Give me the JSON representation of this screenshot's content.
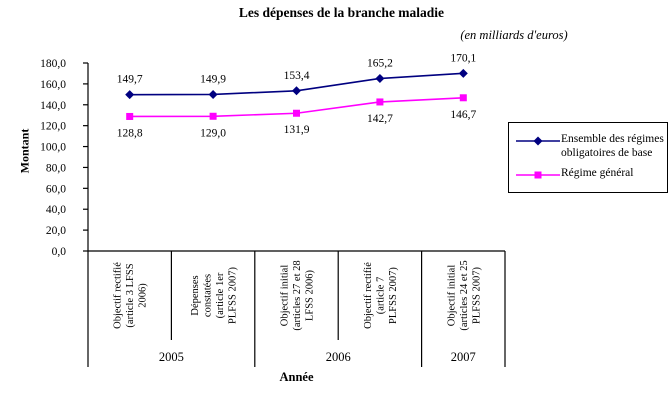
{
  "title": "Les dépenses de la branche maladie",
  "subtitle": "(en milliards d'euros)",
  "chart_data": {
    "type": "line",
    "y_axis": {
      "title": "Montant",
      "min": 0,
      "max": 180,
      "ticks": [
        "180,0",
        "160,0",
        "140,0",
        "120,0",
        "100,0",
        "80,0",
        "60,0",
        "40,0",
        "20,0",
        "0,0"
      ]
    },
    "x_axis": {
      "title": "Année",
      "groups": [
        {
          "label": "2005",
          "span": 2
        },
        {
          "label": "2006",
          "span": 2
        },
        {
          "label": "2007",
          "span": 1
        }
      ]
    },
    "categories": [
      [
        "Objectif rectifié",
        "(article 3 LFSS",
        "2006)"
      ],
      [
        "Dépenses",
        "constatées",
        "(article 1er",
        "PLFSS 2007)"
      ],
      [
        "Objectif initial",
        "(articles 27 et 28",
        "LFSS 2006)"
      ],
      [
        "Objectif rectifié",
        "(article 7",
        "PLFSS 2007)"
      ],
      [
        "Objectif initial",
        "(articles 24 et 25",
        "PLFSS 2007)"
      ]
    ],
    "series": [
      {
        "name": "Ensemble des régimes obligatoires de base",
        "color": "#000080",
        "marker": "diamond",
        "values": [
          149.7,
          149.9,
          153.4,
          165.2,
          170.1
        ],
        "labels": [
          "149,7",
          "149,9",
          "153,4",
          "165,2",
          "170,1"
        ],
        "label_position": "above"
      },
      {
        "name": "Régime général",
        "color": "#FF00FF",
        "marker": "square",
        "values": [
          128.8,
          129.0,
          131.9,
          142.7,
          146.7
        ],
        "labels": [
          "128,8",
          "129,0",
          "131,9",
          "142,7",
          "146,7"
        ],
        "label_position": "below"
      }
    ],
    "legend_position": "right",
    "grid": false
  }
}
